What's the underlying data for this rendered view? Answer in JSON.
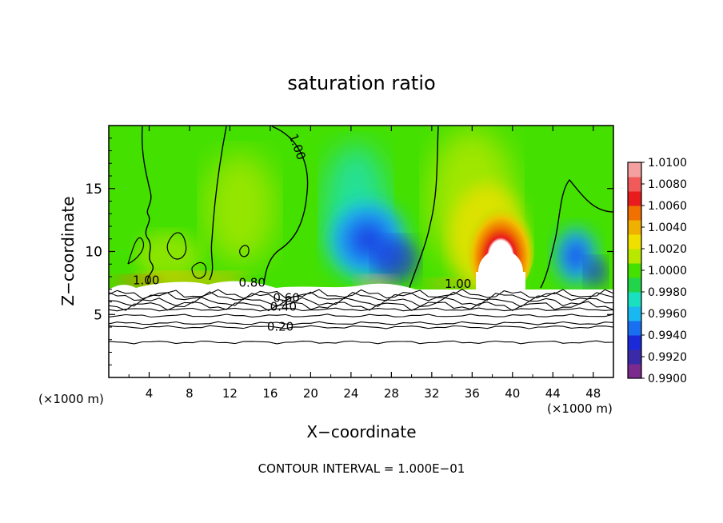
{
  "chart_data": {
    "type": "heatmap",
    "title": "saturation ratio",
    "xlabel": "X−coordinate",
    "ylabel": "Z−coordinate",
    "x_unit_left": "(×1000 m)",
    "x_unit_right": "(×1000 m)",
    "xlim": [
      0,
      50
    ],
    "ylim": [
      0,
      20
    ],
    "x_ticks": [
      "4",
      "8",
      "12",
      "16",
      "20",
      "24",
      "28",
      "32",
      "36",
      "40",
      "44",
      "48"
    ],
    "y_ticks": [
      "5",
      "10",
      "15"
    ],
    "contour_interval_text": "CONTOUR INTERVAL = 1.000E−01",
    "colorbar": {
      "range": [
        0.99,
        1.01
      ],
      "labels": [
        "1.0100",
        "1.0080",
        "1.0060",
        "1.0040",
        "1.0020",
        "1.0000",
        "0.9980",
        "0.9960",
        "0.9940",
        "0.9920",
        "0.9900"
      ],
      "colors": [
        "#7b2a8e",
        "#3a2aa8",
        "#1a2ad8",
        "#1a6ef0",
        "#1ab8f0",
        "#1ae0c0",
        "#22d44a",
        "#44e000",
        "#b8e800",
        "#f0e000",
        "#f0b000",
        "#f07000",
        "#e81c1c",
        "#f05a5a",
        "#f4a0a0"
      ]
    },
    "contour_labels": [
      {
        "text": "1.00",
        "x": 3.7,
        "z": 7.4
      },
      {
        "text": "1.00",
        "x": 18.3,
        "z": 18.2
      },
      {
        "text": "1.00",
        "x": 34.6,
        "z": 7.1
      },
      {
        "text": "0.80",
        "x": 14.2,
        "z": 7.2
      },
      {
        "text": "0.60",
        "x": 17.6,
        "z": 6.0
      },
      {
        "text": "0.40",
        "x": 17.3,
        "z": 5.3
      },
      {
        "text": "0.20",
        "x": 17.0,
        "z": 3.7
      }
    ],
    "contour_levels": [
      {
        "level": 0.9,
        "z": 6.6
      },
      {
        "level": 0.8,
        "z": 6.4
      },
      {
        "level": 0.7,
        "z": 6.0
      },
      {
        "level": 0.6,
        "z": 5.7
      },
      {
        "level": 0.5,
        "z": 5.4
      },
      {
        "level": 0.4,
        "z": 4.9
      },
      {
        "level": 0.3,
        "z": 4.3
      },
      {
        "level": 0.2,
        "z": 4.0
      },
      {
        "level": 0.1,
        "z": 2.8
      }
    ],
    "features": [
      {
        "kind": "supersaturation maximum",
        "x": 38.5,
        "z": 9.5,
        "value": 1.01
      },
      {
        "kind": "subsaturation minimum",
        "x": 24,
        "z": 9.5,
        "value": 0.992
      },
      {
        "kind": "subsaturation minimum",
        "x": 46,
        "z": 9.0,
        "value": 0.993
      },
      {
        "kind": "cloud base",
        "x_range": [
          0,
          50
        ],
        "z": 7.2
      }
    ],
    "grid": false,
    "legend": "colorbar right"
  }
}
